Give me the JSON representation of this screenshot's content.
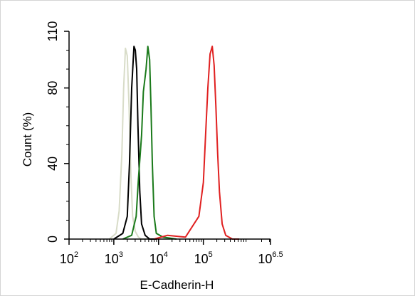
{
  "chart_data": {
    "type": "line",
    "title": "",
    "xlabel": "E-Cadherin-H",
    "ylabel": "Count (%)",
    "x_scale": "log10",
    "xlim": [
      2,
      6.5
    ],
    "ylim": [
      0,
      110
    ],
    "x_ticks": [
      {
        "base": "10",
        "exp": "2",
        "value": 2
      },
      {
        "base": "10",
        "exp": "3",
        "value": 3
      },
      {
        "base": "10",
        "exp": "4",
        "value": 4
      },
      {
        "base": "10",
        "exp": "5",
        "value": 5
      },
      {
        "base": "10",
        "exp": "6.5",
        "value": 6.5
      }
    ],
    "y_ticks": [
      {
        "label": "0",
        "value": 0
      },
      {
        "label": "40",
        "value": 40
      },
      {
        "label": "80",
        "value": 80
      },
      {
        "label": "110",
        "value": 110
      }
    ],
    "grid": false,
    "legend": "none",
    "series": [
      {
        "color": "#d8dcc8",
        "x": [
          2.9,
          3.05,
          3.12,
          3.18,
          3.22,
          3.26,
          3.3,
          3.34,
          3.38,
          3.42,
          3.48,
          3.55,
          3.62,
          3.7,
          3.8
        ],
        "y": [
          0,
          3,
          15,
          45,
          80,
          101,
          97,
          70,
          35,
          12,
          4,
          1,
          0,
          0,
          0
        ]
      },
      {
        "color": "#000000",
        "x": [
          3.0,
          3.2,
          3.3,
          3.35,
          3.4,
          3.45,
          3.48,
          3.51,
          3.54,
          3.58,
          3.62,
          3.7,
          3.8,
          3.95
        ],
        "y": [
          0,
          3,
          12,
          40,
          80,
          102,
          100,
          90,
          60,
          25,
          8,
          2,
          0,
          0
        ]
      },
      {
        "color": "#1a7a1a",
        "x": [
          3.2,
          3.4,
          3.5,
          3.55,
          3.62,
          3.66,
          3.72,
          3.76,
          3.8,
          3.83,
          3.86,
          3.9,
          3.95,
          4.1,
          4.4
        ],
        "y": [
          0,
          2,
          12,
          32,
          55,
          78,
          90,
          102,
          95,
          70,
          40,
          12,
          3,
          1,
          0
        ]
      },
      {
        "color": "#e02020",
        "x": [
          3.9,
          4.2,
          4.6,
          4.9,
          5.0,
          5.05,
          5.1,
          5.15,
          5.2,
          5.24,
          5.28,
          5.32,
          5.36,
          5.42,
          5.5,
          5.65,
          5.8
        ],
        "y": [
          0,
          2,
          1,
          12,
          30,
          55,
          80,
          98,
          102,
          92,
          70,
          45,
          25,
          8,
          2,
          0,
          0
        ]
      }
    ]
  }
}
